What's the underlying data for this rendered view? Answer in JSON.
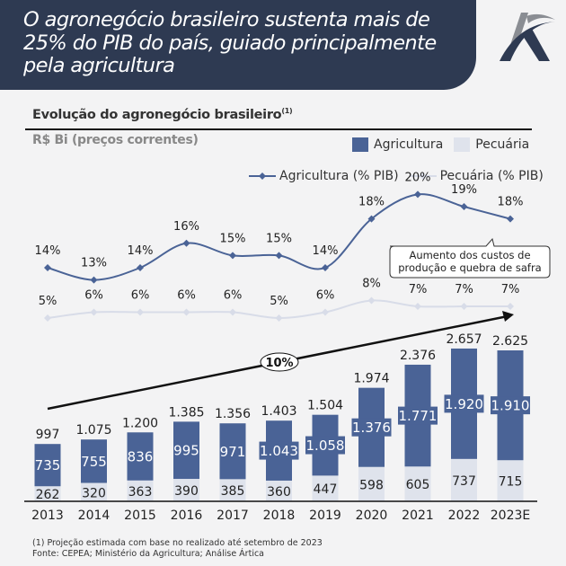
{
  "header": {
    "title": "O agronegócio brasileiro sustenta mais de 25% do PIB do país, guiado principalmente pela agricultura",
    "logo_icon": "artica-logo-icon"
  },
  "colors": {
    "header_bg": "#2e3a52",
    "agriculture": "#4a6396",
    "livestock": "#dfe3ec",
    "agri_line": "#4a6396",
    "livestock_line": "#d8dce8"
  },
  "chart_data": {
    "type": "bar",
    "title": "Evolução do agronegócio brasileiro",
    "title_footnote_mark": "(1)",
    "ylabel": "R$ Bi (preços correntes)",
    "categories": [
      "2013",
      "2014",
      "2015",
      "2016",
      "2017",
      "2018",
      "2019",
      "2020",
      "2021",
      "2022",
      "2023E"
    ],
    "series": [
      {
        "name": "Agricultura",
        "values": [
          735,
          755,
          836,
          995,
          971,
          1043,
          1058,
          1376,
          1771,
          1920,
          1910
        ],
        "labels": [
          "735",
          "755",
          "836",
          "995",
          "971",
          "1.043",
          "1.058",
          "1.376",
          "1.771",
          "1.920",
          "1.910"
        ]
      },
      {
        "name": "Pecuária",
        "values": [
          262,
          320,
          363,
          390,
          385,
          360,
          447,
          598,
          605,
          737,
          715
        ],
        "labels": [
          "262",
          "320",
          "363",
          "390",
          "385",
          "360",
          "447",
          "598",
          "605",
          "737",
          "715"
        ]
      }
    ],
    "totals": [
      997,
      1075,
      1200,
      1385,
      1356,
      1403,
      1504,
      1974,
      2376,
      2657,
      2625
    ],
    "total_labels": [
      "997",
      "1.075",
      "1.200",
      "1.385",
      "1.356",
      "1.403",
      "1.504",
      "1.974",
      "2.376",
      "2.657",
      "2.625"
    ],
    "line_series": [
      {
        "name": "Agricultura (% PIB)",
        "values": [
          14,
          13,
          14,
          16,
          15,
          15,
          14,
          18,
          20,
          19,
          18
        ]
      },
      {
        "name": "Pecuária (% PIB)",
        "values": [
          5,
          6,
          6,
          6,
          6,
          5,
          6,
          8,
          7,
          7,
          7
        ]
      }
    ],
    "legend": {
      "bars": [
        "Agricultura",
        "Pecuária"
      ],
      "lines": [
        "Agricultura (% PIB)",
        "Pecuária (% PIB)"
      ],
      "placement": "top-right"
    },
    "annotations": {
      "cagr": "10%",
      "callout": [
        "Aumento dos custos de",
        "produção e quebra de safra"
      ]
    },
    "ylim": [
      0,
      2700
    ]
  },
  "footnotes": [
    "(1) Projeção estimada com base no realizado até setembro de 2023",
    "Fonte: CEPEA; Ministério da Agricultura; Análise Ártica"
  ]
}
